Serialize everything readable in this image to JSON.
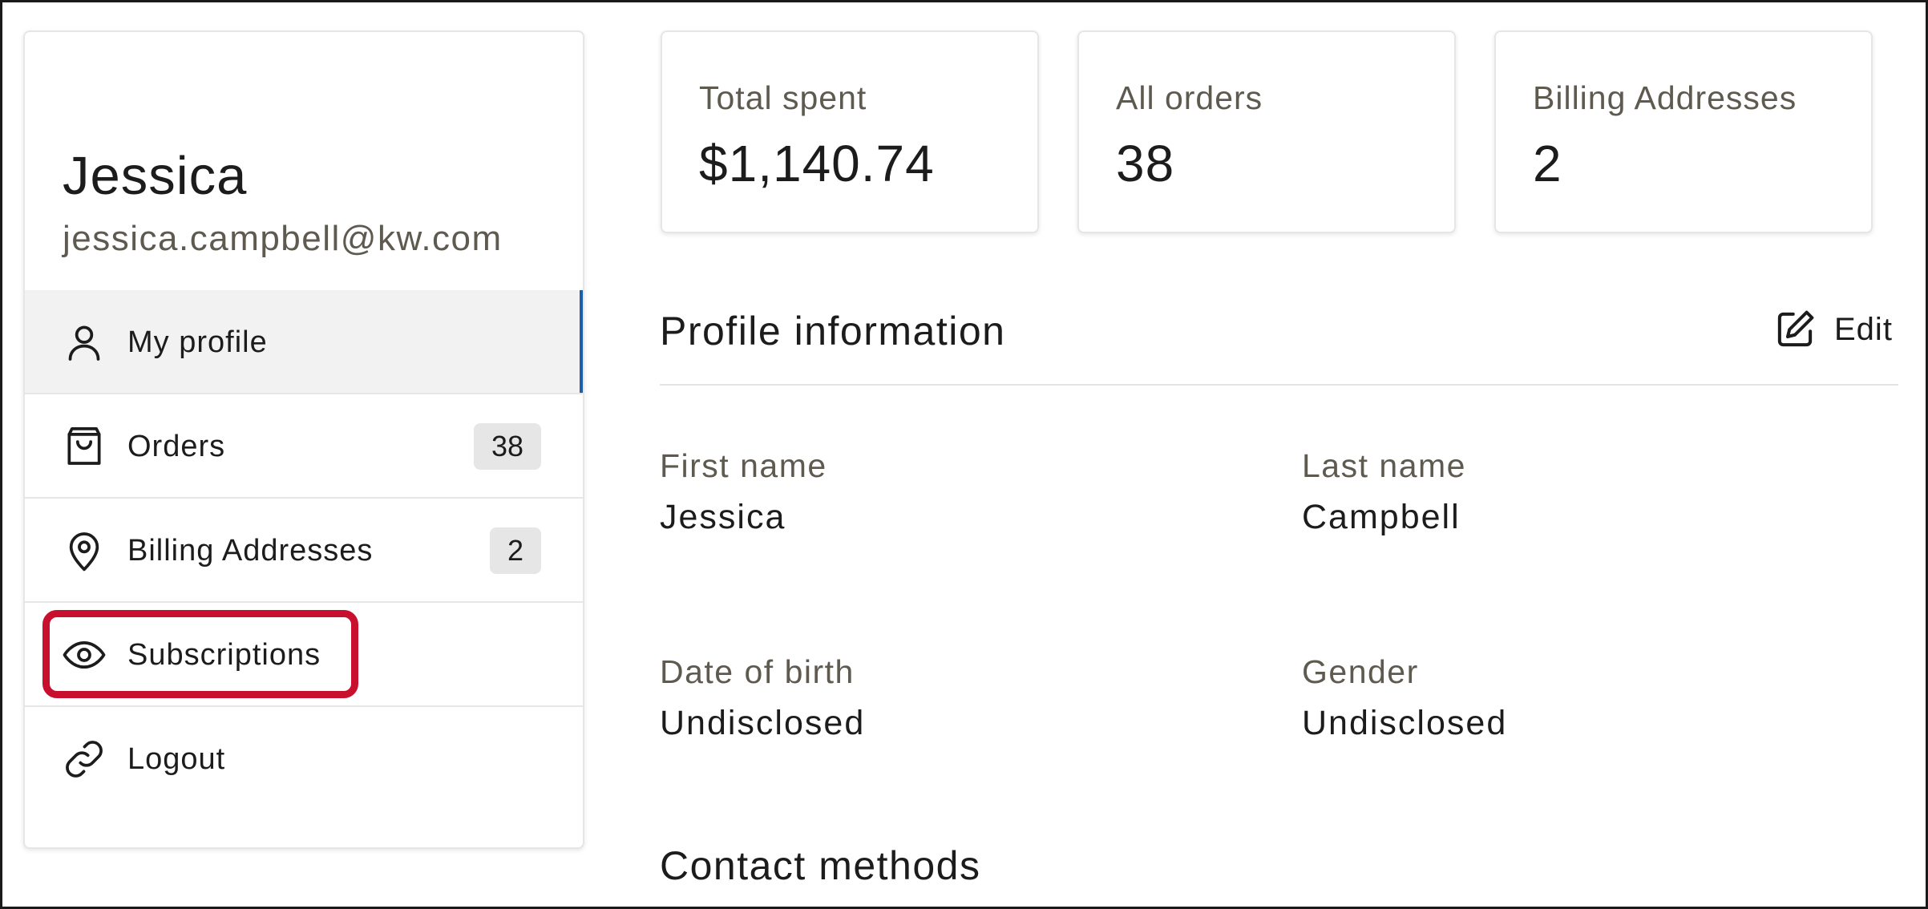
{
  "user": {
    "name": "Jessica",
    "email": "jessica.campbell@kw.com"
  },
  "nav": {
    "items": [
      {
        "label": "My profile",
        "icon": "person-icon",
        "active": true
      },
      {
        "label": "Orders",
        "icon": "shopping-bag-icon",
        "count": "38"
      },
      {
        "label": "Billing Addresses",
        "icon": "location-pin-icon",
        "count": "2"
      },
      {
        "label": "Subscriptions",
        "icon": "eye-icon",
        "highlighted": true
      },
      {
        "label": "Logout",
        "icon": "link-icon"
      }
    ]
  },
  "stats": [
    {
      "label": "Total spent",
      "value": "$1,140.74"
    },
    {
      "label": "All orders",
      "value": "38"
    },
    {
      "label": "Billing Addresses",
      "value": "2"
    }
  ],
  "profile": {
    "title": "Profile information",
    "edit_label": "Edit",
    "fields": {
      "first_name": {
        "label": "First name",
        "value": "Jessica"
      },
      "last_name": {
        "label": "Last name",
        "value": "Campbell"
      },
      "dob": {
        "label": "Date of birth",
        "value": "Undisclosed"
      },
      "gender": {
        "label": "Gender",
        "value": "Undisclosed"
      }
    }
  },
  "contact": {
    "title": "Contact methods"
  },
  "colors": {
    "active_indicator": "#1b5fa8",
    "highlight": "#c8102e",
    "muted_text": "#5f5a50",
    "badge_bg": "#e6e6e6"
  }
}
